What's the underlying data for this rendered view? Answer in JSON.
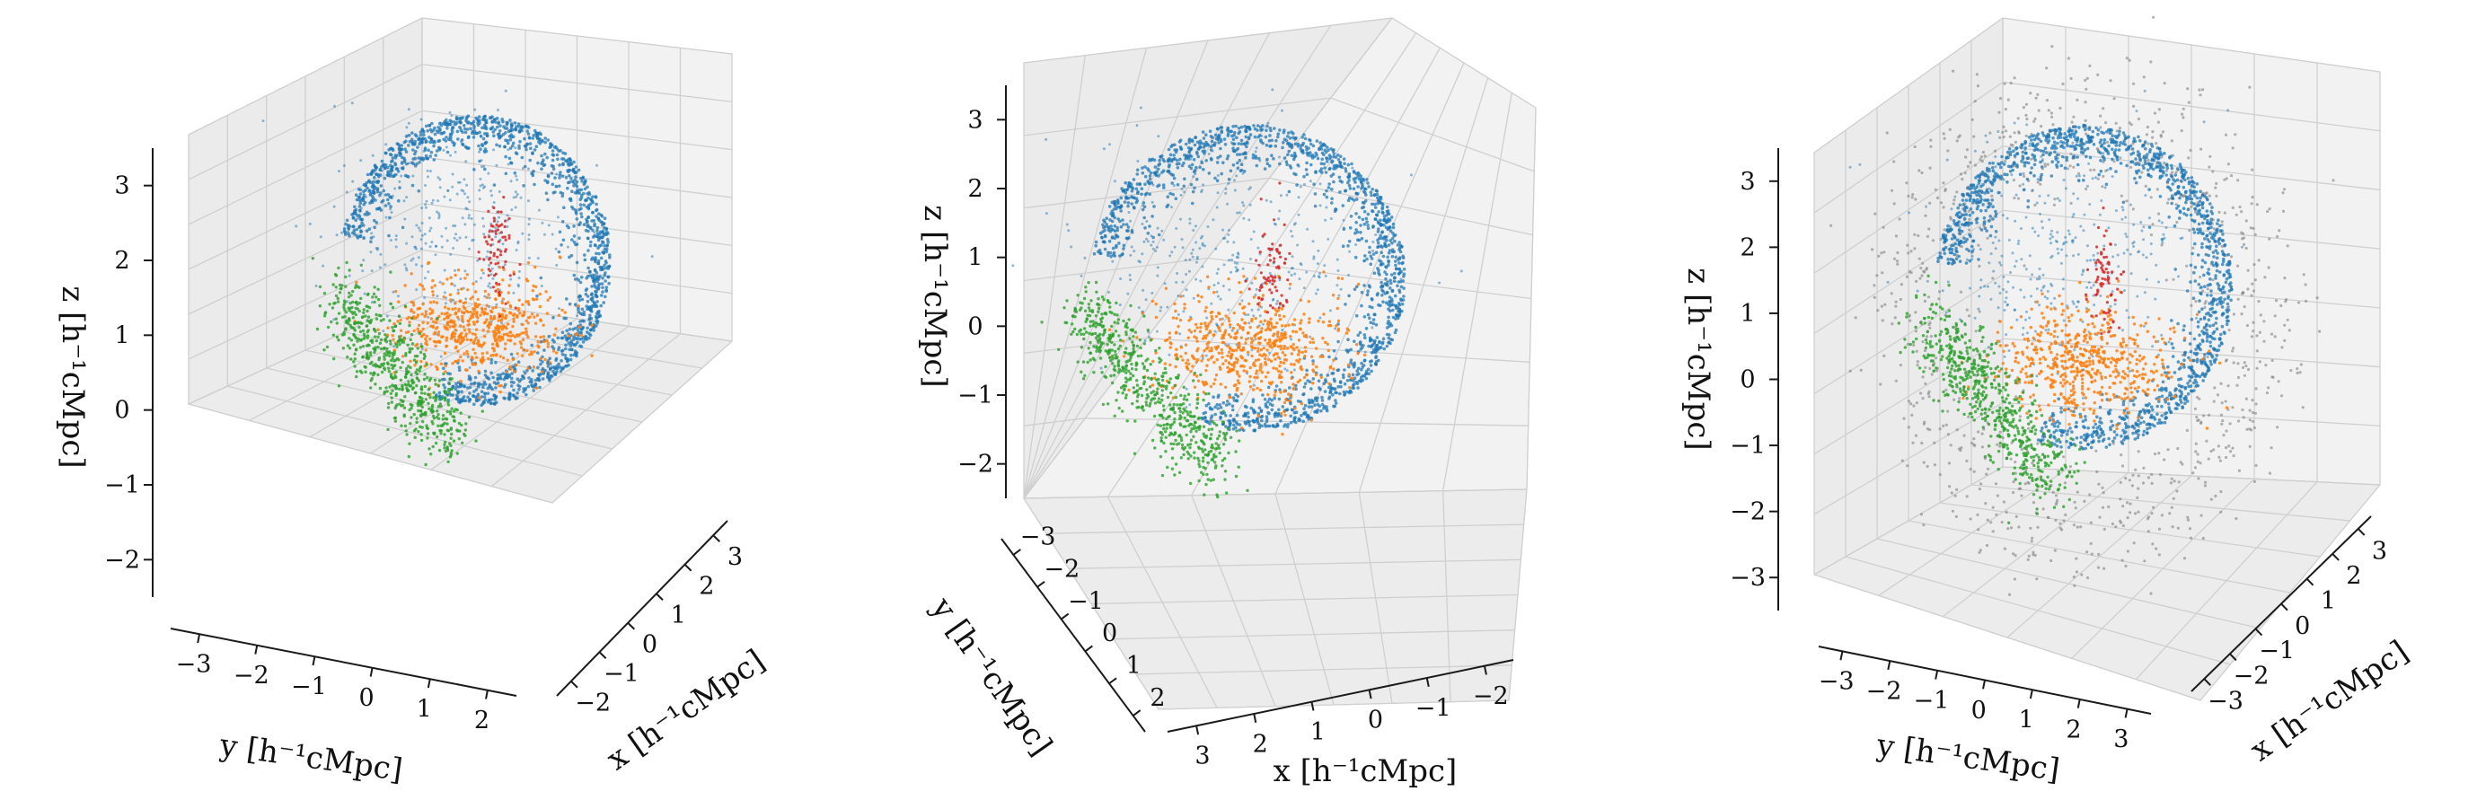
{
  "chart_data": [
    {
      "type": "scatter",
      "subtype": "3d",
      "xlabel": "x  [h⁻¹cMpc]",
      "ylabel": "y  [h⁻¹cMpc]",
      "zlabel": "z  [h⁻¹cMpc]",
      "x_ticks": [
        "−2",
        "−1",
        "0",
        "1",
        "2",
        "3"
      ],
      "y_ticks": [
        "−3",
        "−2",
        "−1",
        "0",
        "1",
        "2"
      ],
      "z_ticks": [
        "−2",
        "−1",
        "0",
        "1",
        "2",
        "3"
      ],
      "grid": true,
      "series": [
        {
          "color": "#1f77b4",
          "description": "large shell-like point cloud"
        },
        {
          "color": "#ff7f0e",
          "description": "compact cluster below shell centre"
        },
        {
          "color": "#2ca02c",
          "description": "elongated sheet at lower left"
        },
        {
          "color": "#d62728",
          "description": "small group inside shell"
        }
      ]
    },
    {
      "type": "scatter",
      "subtype": "3d",
      "xlabel": "x  [h⁻¹cMpc]",
      "ylabel": "y  [h⁻¹cMpc]",
      "zlabel": "z  [h⁻¹cMpc]",
      "x_ticks": [
        "3",
        "2",
        "1",
        "0",
        "−1",
        "−2"
      ],
      "y_ticks": [
        "−3",
        "−2",
        "−1",
        "0",
        "1",
        "2"
      ],
      "z_ticks": [
        "−2",
        "−1",
        "0",
        "1",
        "2",
        "3"
      ],
      "grid": true,
      "series": [
        {
          "color": "#1f77b4",
          "description": "large shell-like point cloud"
        },
        {
          "color": "#ff7f0e",
          "description": "compact cluster in lower shell"
        },
        {
          "color": "#2ca02c",
          "description": "elongated sheet at lower left"
        },
        {
          "color": "#d62728",
          "description": "small group inside shell"
        }
      ]
    },
    {
      "type": "scatter",
      "subtype": "3d",
      "xlabel": "x  [h⁻¹cMpc]",
      "ylabel": "y  [h⁻¹cMpc]",
      "zlabel": "z  [h⁻¹cMpc]",
      "x_ticks": [
        "−3",
        "−2",
        "−1",
        "0",
        "1",
        "2",
        "3"
      ],
      "y_ticks": [
        "−3",
        "−2",
        "−1",
        "0",
        "1",
        "2",
        "3"
      ],
      "z_ticks": [
        "−3",
        "−2",
        "−1",
        "0",
        "1",
        "2",
        "3"
      ],
      "grid": true,
      "series": [
        {
          "color": "#1f77b4",
          "description": "shell-like point cloud"
        },
        {
          "color": "#ff7f0e",
          "description": "compact cluster"
        },
        {
          "color": "#2ca02c",
          "description": "elongated sheet"
        },
        {
          "color": "#d62728",
          "description": "small group"
        },
        {
          "color": "#808080",
          "description": "surrounding filamentary structure"
        }
      ]
    }
  ]
}
